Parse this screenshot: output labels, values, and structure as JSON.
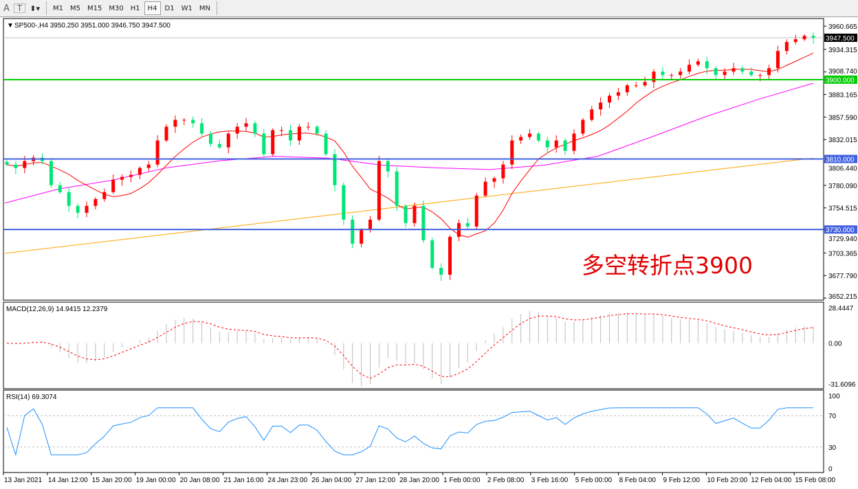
{
  "toolbar": {
    "tools": [
      {
        "name": "text-tool",
        "label": "A"
      },
      {
        "name": "text-label-tool",
        "label": "T"
      },
      {
        "name": "arrows-tool",
        "label": "⬍▾"
      }
    ],
    "timeframes": [
      "M1",
      "M5",
      "M15",
      "M30",
      "H1",
      "H4",
      "D1",
      "W1",
      "MN"
    ],
    "active_timeframe": "H4"
  },
  "chart_data": {
    "type": "candlestick",
    "title": "SP500-,H4  3950.250 3951.000 3946.750 3947.500",
    "symbol": "SP500-",
    "timeframe": "H4",
    "last": {
      "open": 3950.25,
      "high": 3951.0,
      "low": 3946.75,
      "close": 3947.5
    },
    "ylim": [
      3649.9,
      3969.3
    ],
    "y_ticks": [
      "3960.665",
      "3934.315",
      "3908.740",
      "3883.165",
      "3857.590",
      "3832.015",
      "3806.440",
      "3780.090",
      "3754.515",
      "3729.940",
      "3703.365",
      "3677.790",
      "3652.215"
    ],
    "y_tick_values": [
      3960.665,
      3934.315,
      3908.74,
      3883.165,
      3857.59,
      3832.015,
      3806.44,
      3780.09,
      3754.515,
      3729.94,
      3703.365,
      3677.79,
      3652.215
    ],
    "x_ticks": [
      "13 Jan 2021",
      "14 Jan 12:00",
      "15 Jan 20:00",
      "19 Jan 00:00",
      "20 Jan 08:00",
      "21 Jan 16:00",
      "24 Jan 23:00",
      "26 Jan 04:00",
      "27 Jan 12:00",
      "28 Jan 20:00",
      "1 Feb 00:00",
      "2 Feb 08:00",
      "3 Feb 16:00",
      "5 Feb 00:00",
      "8 Feb 04:00",
      "9 Feb 12:00",
      "10 Feb 20:00",
      "12 Feb 04:00",
      "15 Feb 08:00"
    ],
    "closes": [
      3803.7,
      3799.8,
      3807.6,
      3811.5,
      3807.6,
      3780.3,
      3772.4,
      3756.8,
      3749.0,
      3756.8,
      3764.6,
      3772.4,
      3786.5,
      3789.6,
      3792.0,
      3799.8,
      3803.7,
      3831.0,
      3846.6,
      3854.4,
      3854.4,
      3850.5,
      3838.8,
      3827.1,
      3823.2,
      3838.8,
      3846.6,
      3850.5,
      3838.8,
      3815.4,
      3842.7,
      3842.7,
      3831.0,
      3846.6,
      3846.6,
      3838.8,
      3815.4,
      3780.3,
      3741.2,
      3713.9,
      3729.5,
      3741.2,
      3807.6,
      3795.9,
      3756.8,
      3737.3,
      3756.8,
      3717.8,
      3686.5,
      3678.7,
      3721.7,
      3737.3,
      3733.4,
      3768.5,
      3784.2,
      3788.1,
      3803.7,
      3831.0,
      3834.9,
      3838.8,
      3831.0,
      3823.2,
      3831.0,
      3819.3,
      3838.8,
      3854.4,
      3866.2,
      3874.0,
      3881.8,
      3885.7,
      3893.5,
      3893.5,
      3897.4,
      3909.1,
      3905.2,
      3905.2,
      3909.1,
      3916.9,
      3920.8,
      3913.0,
      3905.2,
      3909.1,
      3913.0,
      3909.1,
      3905.2,
      3905.2,
      3913.0,
      3932.5,
      3942.7,
      3945.8,
      3949.7,
      3947.5
    ],
    "bull_color": "#ff0000",
    "bear_color": "#00e676",
    "ma_slow": {
      "color": "#ffa500",
      "values": [
        3703,
        3811
      ]
    },
    "ma_mid": {
      "color": "#ff00ff",
      "values": [
        3760,
        3776,
        3786,
        3800,
        3808,
        3813,
        3811,
        3803,
        3800,
        3798,
        3803,
        3813,
        3835,
        3858,
        3878,
        3896
      ]
    },
    "ma_fast": {
      "color": "#ff0000",
      "period": 8
    },
    "levels": [
      {
        "value": 3900.0,
        "label": "3900.000",
        "color": "#00cc00"
      },
      {
        "value": 3810.0,
        "label": "3810.000",
        "color": "#4060e0"
      },
      {
        "value": 3730.0,
        "label": "3730.000",
        "color": "#4060e0"
      }
    ],
    "last_price_label": "3947.500",
    "annotation": "多空转折点3900",
    "macd": {
      "title": "MACD(12,26,9) 14.9415 12.2379",
      "y_ticks": [
        "28.4447",
        "0.00",
        "-31.6096"
      ],
      "ylim": [
        -31.6096,
        28.4447
      ]
    },
    "rsi": {
      "title": "RSI(14) 69.3074",
      "y_ticks": [
        "100",
        "70",
        "30",
        "0"
      ],
      "levels": [
        70,
        30
      ],
      "color": "#1e90ff"
    }
  }
}
